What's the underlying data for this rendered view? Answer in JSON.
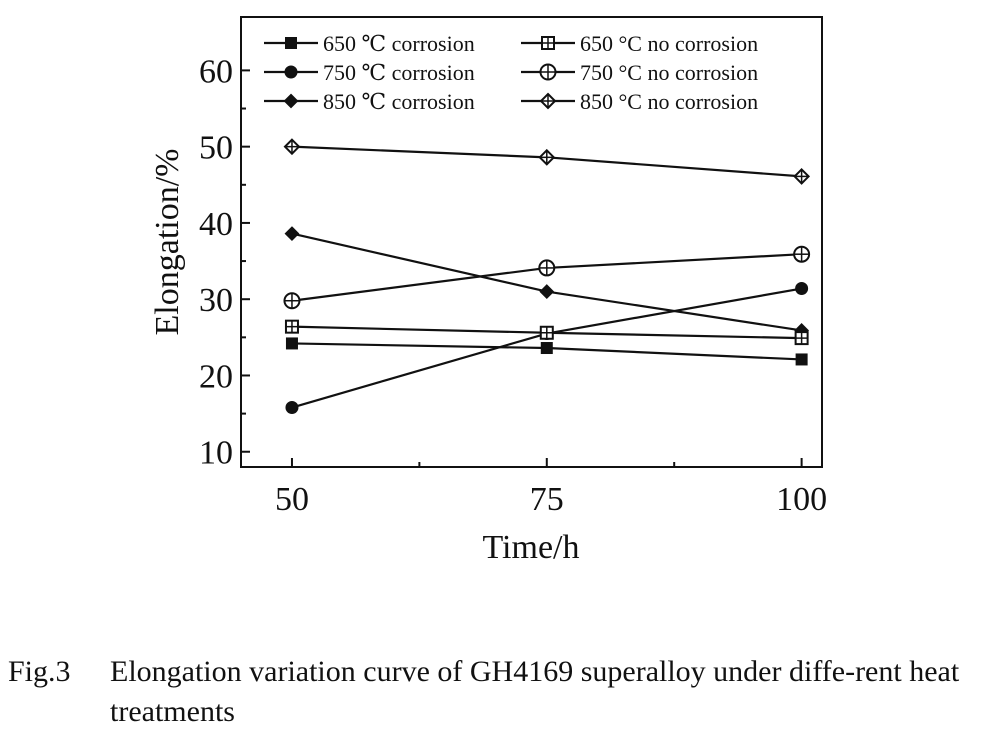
{
  "chart_data": {
    "type": "line",
    "xlabel": "Time/h",
    "ylabel": "Elongation/%",
    "x": [
      50,
      75,
      100
    ],
    "xlim": [
      45,
      102
    ],
    "ylim": [
      8,
      67
    ],
    "xticks": [
      50,
      75,
      100
    ],
    "yticks": [
      10,
      20,
      30,
      40,
      50,
      60
    ],
    "grid": false,
    "legend_position": "top-left, two columns",
    "series": [
      {
        "name": "650 ℃ corrosion",
        "marker": "square-filled",
        "values": [
          24.2,
          23.6,
          22.1
        ]
      },
      {
        "name": "750 ℃ corrosion",
        "marker": "circle-filled",
        "values": [
          15.8,
          25.5,
          31.4
        ]
      },
      {
        "name": "850 ℃ corrosion",
        "marker": "diamond-filled",
        "values": [
          38.6,
          31.0,
          25.9
        ]
      },
      {
        "name": "650 °C no corrosion",
        "marker": "square-open-cross",
        "values": [
          26.4,
          25.6,
          24.9
        ]
      },
      {
        "name": "750 °C no corrosion",
        "marker": "circle-open-cross",
        "values": [
          29.8,
          34.1,
          35.9
        ]
      },
      {
        "name": "850 °C no corrosion",
        "marker": "diamond-open-cross",
        "values": [
          50.0,
          48.6,
          46.1
        ]
      }
    ]
  },
  "caption": {
    "label": "Fig.3",
    "text": "Elongation variation curve of GH4169 superalloy under diffe-rent heat treatments"
  }
}
